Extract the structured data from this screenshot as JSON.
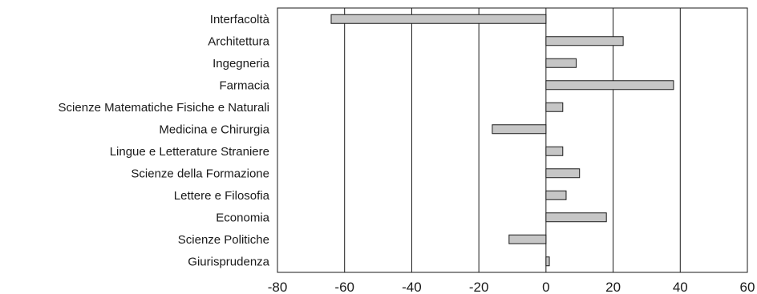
{
  "chart_data": {
    "type": "bar",
    "orientation": "horizontal",
    "categories": [
      "Interfacoltà",
      "Architettura",
      "Ingegneria",
      "Farmacia",
      "Scienze Matematiche Fisiche e Naturali",
      "Medicina e Chirurgia",
      "Lingue e Letterature Straniere",
      "Scienze della Formazione",
      "Lettere e Filosofia",
      "Economia",
      "Scienze Politiche",
      "Giurisprudenza"
    ],
    "values": [
      -64,
      23,
      9,
      38,
      5,
      -16,
      5,
      10,
      6,
      18,
      -11,
      1
    ],
    "xlim": [
      -80,
      60
    ],
    "xticks": [
      "-80",
      "-60",
      "-40",
      "-20",
      "0",
      "20",
      "40",
      "60"
    ],
    "grid": "vertical lines at major ticks",
    "colors": {
      "bar_fill": "#c6c6c6",
      "bar_stroke": "#1a1a1a",
      "grid": "#1a1a1a"
    }
  }
}
